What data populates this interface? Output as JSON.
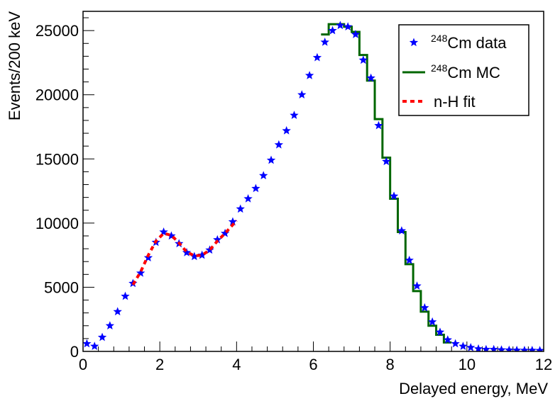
{
  "chart_data": {
    "type": "scatter",
    "xlabel": "Delayed energy, MeV",
    "ylabel": "Events/200 keV",
    "xlim": [
      0,
      12
    ],
    "ylim": [
      0,
      26500
    ],
    "xticks": [
      0,
      2,
      4,
      6,
      8,
      10,
      12
    ],
    "xtick_labels": [
      "0",
      "2",
      "4",
      "6",
      "8",
      "10",
      "12"
    ],
    "yticks": [
      0,
      5000,
      10000,
      15000,
      20000,
      25000
    ],
    "ytick_labels": [
      "0",
      "5000",
      "10000",
      "15000",
      "20000",
      "25000"
    ],
    "grid": false,
    "legend_position": "top-right",
    "series": [
      {
        "name": "248Cm data",
        "label_sup": "248",
        "label_main": "Cm data",
        "style": "markers",
        "marker": "star",
        "color": "#0000ff",
        "x": [
          0.1,
          0.3,
          0.5,
          0.7,
          0.9,
          1.1,
          1.3,
          1.5,
          1.7,
          1.9,
          2.1,
          2.3,
          2.5,
          2.7,
          2.9,
          3.1,
          3.3,
          3.5,
          3.7,
          3.9,
          4.1,
          4.3,
          4.5,
          4.7,
          4.9,
          5.1,
          5.3,
          5.5,
          5.7,
          5.9,
          6.1,
          6.3,
          6.5,
          6.7,
          6.9,
          7.1,
          7.3,
          7.5,
          7.7,
          7.9,
          8.1,
          8.3,
          8.5,
          8.7,
          8.9,
          9.1,
          9.3,
          9.5,
          9.7,
          9.9,
          10.1,
          10.3,
          10.5,
          10.7,
          10.9,
          11.1,
          11.3,
          11.5,
          11.7,
          11.9
        ],
        "y": [
          600,
          400,
          1100,
          2000,
          3100,
          4300,
          5300,
          6100,
          7300,
          8500,
          9300,
          9000,
          8400,
          7700,
          7400,
          7500,
          7900,
          8700,
          9200,
          10100,
          11100,
          11900,
          12700,
          13700,
          14900,
          16100,
          17200,
          18400,
          20000,
          21500,
          22900,
          24100,
          25000,
          25400,
          25300,
          24700,
          22700,
          21300,
          17600,
          14800,
          12100,
          9400,
          7100,
          5100,
          3400,
          2300,
          1500,
          900,
          600,
          400,
          300,
          200,
          150,
          150,
          120,
          100,
          90,
          80,
          80,
          70
        ]
      },
      {
        "name": "248Cm MC",
        "label_sup": "248",
        "label_main": "Cm MC",
        "style": "step",
        "color": "#006600",
        "bin_edges": [
          6.2,
          6.4,
          6.6,
          6.8,
          7.0,
          7.2,
          7.4,
          7.6,
          7.8,
          8.0,
          8.2,
          8.4,
          8.6,
          8.8,
          9.0,
          9.2,
          9.4,
          9.6
        ],
        "values": [
          24700,
          25500,
          25500,
          25300,
          24900,
          23100,
          21100,
          18100,
          15100,
          11900,
          9300,
          6800,
          4700,
          3100,
          2000,
          1300,
          700
        ]
      },
      {
        "name": "n-H fit",
        "label_main": "n-H fit",
        "style": "dashed-line",
        "color": "#ff0000",
        "x": [
          1.3,
          1.5,
          1.7,
          1.9,
          2.1,
          2.3,
          2.5,
          2.7,
          2.9,
          3.1,
          3.3,
          3.5,
          3.7,
          4.0
        ],
        "y": [
          5200,
          6200,
          7500,
          8600,
          9200,
          9050,
          8450,
          7750,
          7450,
          7500,
          7900,
          8600,
          9200,
          10200
        ]
      }
    ]
  }
}
